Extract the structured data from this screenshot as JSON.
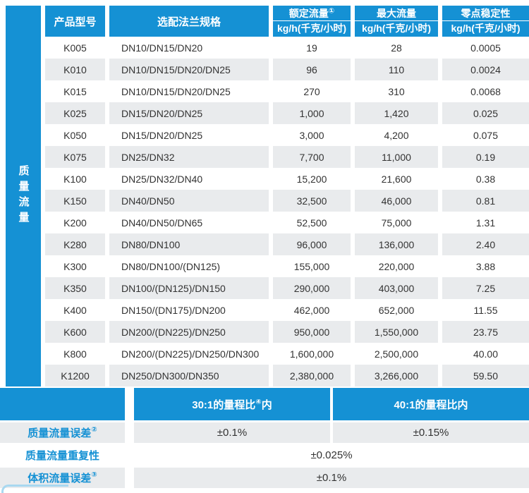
{
  "colors": {
    "accent": "#1591d4",
    "row_alt": "#e9ebed",
    "text": "#333333",
    "corner": "#a8d8f0"
  },
  "table": {
    "sidebar_label": "质量流量",
    "header": {
      "model": "产品型号",
      "flange": "选配法兰规格",
      "rated": {
        "title": "额定流量",
        "sup": "①",
        "unit": "kg/h(千克/小时)"
      },
      "max": {
        "title": "最大流量",
        "sup": "",
        "unit": "kg/h(千克/小时)"
      },
      "zero": {
        "title": "零点稳定性",
        "sup": "",
        "unit": "kg/h(千克/小时)"
      }
    },
    "rows": [
      {
        "model": "K005",
        "flange": "DN10/DN15/DN20",
        "rated": "19",
        "max": "28",
        "zero": "0.0005"
      },
      {
        "model": "K010",
        "flange": "DN10/DN15/DN20/DN25",
        "rated": "96",
        "max": "110",
        "zero": "0.0024"
      },
      {
        "model": "K015",
        "flange": "DN10/DN15/DN20/DN25",
        "rated": "270",
        "max": "310",
        "zero": "0.0068"
      },
      {
        "model": "K025",
        "flange": "DN15/DN20/DN25",
        "rated": "1,000",
        "max": "1,420",
        "zero": "0.025"
      },
      {
        "model": "K050",
        "flange": "DN15/DN20/DN25",
        "rated": "3,000",
        "max": "4,200",
        "zero": "0.075"
      },
      {
        "model": "K075",
        "flange": "DN25/DN32",
        "rated": "7,700",
        "max": "11,000",
        "zero": "0.19"
      },
      {
        "model": "K100",
        "flange": "DN25/DN32/DN40",
        "rated": "15,200",
        "max": "21,600",
        "zero": "0.38"
      },
      {
        "model": "K150",
        "flange": "DN40/DN50",
        "rated": "32,500",
        "max": "46,000",
        "zero": "0.81"
      },
      {
        "model": "K200",
        "flange": "DN40/DN50/DN65",
        "rated": "52,500",
        "max": "75,000",
        "zero": "1.31"
      },
      {
        "model": "K280",
        "flange": "DN80/DN100",
        "rated": "96,000",
        "max": "136,000",
        "zero": "2.40"
      },
      {
        "model": "K300",
        "flange": "DN80/DN100/(DN125)",
        "rated": "155,000",
        "max": "220,000",
        "zero": "3.88"
      },
      {
        "model": "K350",
        "flange": "DN100/(DN125)/DN150",
        "rated": "290,000",
        "max": "403,000",
        "zero": "7.25"
      },
      {
        "model": "K400",
        "flange": "DN150/(DN175)/DN200",
        "rated": "462,000",
        "max": "652,000",
        "zero": "11.55"
      },
      {
        "model": "K600",
        "flange": "DN200/(DN225)/DN250",
        "rated": "950,000",
        "max": "1,550,000",
        "zero": "23.75"
      },
      {
        "model": "K800",
        "flange": "DN200/(DN225)/DN250/DN300",
        "rated": "1,600,000",
        "max": "2,500,000",
        "zero": "40.00"
      },
      {
        "model": "K1200",
        "flange": "DN250/DN300/DN350",
        "rated": "2,380,000",
        "max": "3,266,000",
        "zero": "59.50"
      }
    ]
  },
  "accuracy": {
    "range_cols": [
      {
        "pre": "30:1的量程比",
        "sup": "④",
        "post": "内"
      },
      {
        "pre": "40:1的量程比",
        "sup": "",
        "post": "内"
      }
    ],
    "rows": [
      {
        "label": "质量流量误差",
        "sup": "②",
        "values": [
          "±0.1%",
          "±0.15%"
        ]
      },
      {
        "label": "质量流量重复性",
        "sup": "",
        "values": [
          "±0.025%"
        ]
      },
      {
        "label": "体积流量误差",
        "sup": "③",
        "values": [
          "±0.1%"
        ]
      }
    ]
  }
}
